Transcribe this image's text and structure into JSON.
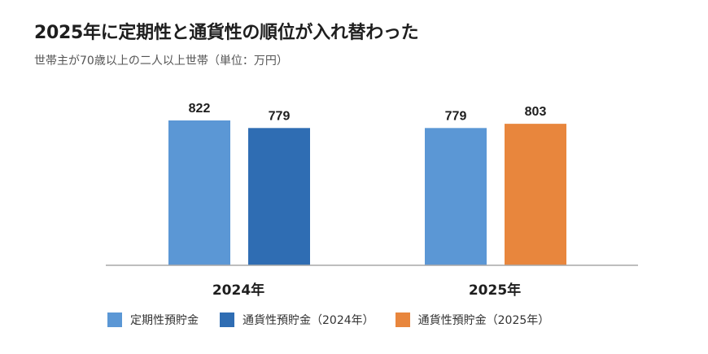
{
  "title": "2025年に定期性と通貨性の順位が入れ替わった",
  "subtitle": "世帯主が70歳以上の二人以上世帯（単位：万円）",
  "chart_data": {
    "type": "bar",
    "categories": [
      "2024年",
      "2025年"
    ],
    "series": [
      {
        "name": "定期性預貯金",
        "color": "#5b97d5",
        "values": [
          822,
          779
        ]
      },
      {
        "name": "通貨性預貯金（2024年）",
        "color": "#2f6db3",
        "values": [
          779,
          null
        ]
      },
      {
        "name": "通貨性預貯金（2025年）",
        "color": "#e8863d",
        "values": [
          null,
          803
        ]
      }
    ],
    "ylim": [
      0,
      900
    ],
    "grid": false,
    "legend_position": "bottom",
    "unit": "万円"
  }
}
